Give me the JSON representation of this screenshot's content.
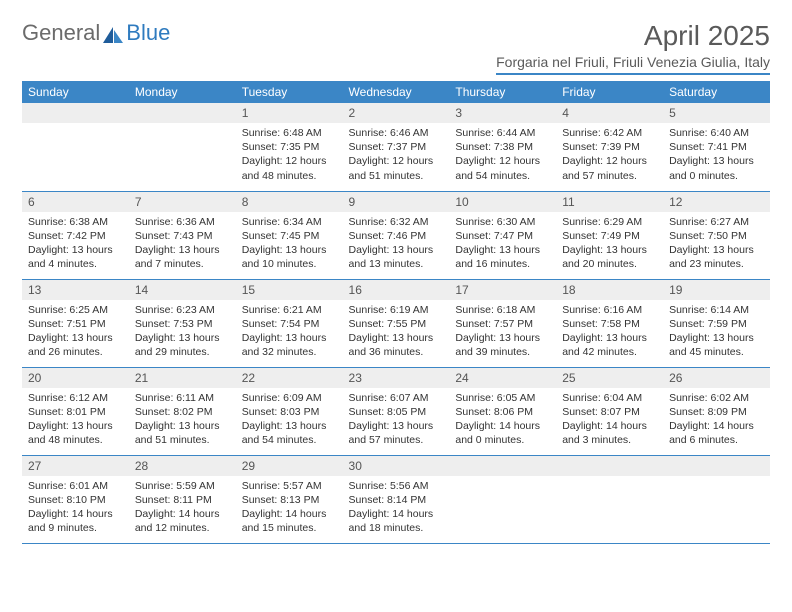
{
  "logo": {
    "text1": "General",
    "text2": "Blue",
    "accent": "#2f7bbf"
  },
  "title": "April 2025",
  "location": "Forgaria nel Friuli, Friuli Venezia Giulia, Italy",
  "colors": {
    "header_bg": "#3b86c6",
    "header_text": "#ffffff",
    "daynum_bg": "#eeeeee",
    "border": "#3b86c6",
    "text": "#333333",
    "page_bg": "#ffffff"
  },
  "weekdays": [
    "Sunday",
    "Monday",
    "Tuesday",
    "Wednesday",
    "Thursday",
    "Friday",
    "Saturday"
  ],
  "weeks": [
    [
      null,
      null,
      {
        "n": "1",
        "sr": "Sunrise: 6:48 AM",
        "ss": "Sunset: 7:35 PM",
        "dl": "Daylight: 12 hours and 48 minutes."
      },
      {
        "n": "2",
        "sr": "Sunrise: 6:46 AM",
        "ss": "Sunset: 7:37 PM",
        "dl": "Daylight: 12 hours and 51 minutes."
      },
      {
        "n": "3",
        "sr": "Sunrise: 6:44 AM",
        "ss": "Sunset: 7:38 PM",
        "dl": "Daylight: 12 hours and 54 minutes."
      },
      {
        "n": "4",
        "sr": "Sunrise: 6:42 AM",
        "ss": "Sunset: 7:39 PM",
        "dl": "Daylight: 12 hours and 57 minutes."
      },
      {
        "n": "5",
        "sr": "Sunrise: 6:40 AM",
        "ss": "Sunset: 7:41 PM",
        "dl": "Daylight: 13 hours and 0 minutes."
      }
    ],
    [
      {
        "n": "6",
        "sr": "Sunrise: 6:38 AM",
        "ss": "Sunset: 7:42 PM",
        "dl": "Daylight: 13 hours and 4 minutes."
      },
      {
        "n": "7",
        "sr": "Sunrise: 6:36 AM",
        "ss": "Sunset: 7:43 PM",
        "dl": "Daylight: 13 hours and 7 minutes."
      },
      {
        "n": "8",
        "sr": "Sunrise: 6:34 AM",
        "ss": "Sunset: 7:45 PM",
        "dl": "Daylight: 13 hours and 10 minutes."
      },
      {
        "n": "9",
        "sr": "Sunrise: 6:32 AM",
        "ss": "Sunset: 7:46 PM",
        "dl": "Daylight: 13 hours and 13 minutes."
      },
      {
        "n": "10",
        "sr": "Sunrise: 6:30 AM",
        "ss": "Sunset: 7:47 PM",
        "dl": "Daylight: 13 hours and 16 minutes."
      },
      {
        "n": "11",
        "sr": "Sunrise: 6:29 AM",
        "ss": "Sunset: 7:49 PM",
        "dl": "Daylight: 13 hours and 20 minutes."
      },
      {
        "n": "12",
        "sr": "Sunrise: 6:27 AM",
        "ss": "Sunset: 7:50 PM",
        "dl": "Daylight: 13 hours and 23 minutes."
      }
    ],
    [
      {
        "n": "13",
        "sr": "Sunrise: 6:25 AM",
        "ss": "Sunset: 7:51 PM",
        "dl": "Daylight: 13 hours and 26 minutes."
      },
      {
        "n": "14",
        "sr": "Sunrise: 6:23 AM",
        "ss": "Sunset: 7:53 PM",
        "dl": "Daylight: 13 hours and 29 minutes."
      },
      {
        "n": "15",
        "sr": "Sunrise: 6:21 AM",
        "ss": "Sunset: 7:54 PM",
        "dl": "Daylight: 13 hours and 32 minutes."
      },
      {
        "n": "16",
        "sr": "Sunrise: 6:19 AM",
        "ss": "Sunset: 7:55 PM",
        "dl": "Daylight: 13 hours and 36 minutes."
      },
      {
        "n": "17",
        "sr": "Sunrise: 6:18 AM",
        "ss": "Sunset: 7:57 PM",
        "dl": "Daylight: 13 hours and 39 minutes."
      },
      {
        "n": "18",
        "sr": "Sunrise: 6:16 AM",
        "ss": "Sunset: 7:58 PM",
        "dl": "Daylight: 13 hours and 42 minutes."
      },
      {
        "n": "19",
        "sr": "Sunrise: 6:14 AM",
        "ss": "Sunset: 7:59 PM",
        "dl": "Daylight: 13 hours and 45 minutes."
      }
    ],
    [
      {
        "n": "20",
        "sr": "Sunrise: 6:12 AM",
        "ss": "Sunset: 8:01 PM",
        "dl": "Daylight: 13 hours and 48 minutes."
      },
      {
        "n": "21",
        "sr": "Sunrise: 6:11 AM",
        "ss": "Sunset: 8:02 PM",
        "dl": "Daylight: 13 hours and 51 minutes."
      },
      {
        "n": "22",
        "sr": "Sunrise: 6:09 AM",
        "ss": "Sunset: 8:03 PM",
        "dl": "Daylight: 13 hours and 54 minutes."
      },
      {
        "n": "23",
        "sr": "Sunrise: 6:07 AM",
        "ss": "Sunset: 8:05 PM",
        "dl": "Daylight: 13 hours and 57 minutes."
      },
      {
        "n": "24",
        "sr": "Sunrise: 6:05 AM",
        "ss": "Sunset: 8:06 PM",
        "dl": "Daylight: 14 hours and 0 minutes."
      },
      {
        "n": "25",
        "sr": "Sunrise: 6:04 AM",
        "ss": "Sunset: 8:07 PM",
        "dl": "Daylight: 14 hours and 3 minutes."
      },
      {
        "n": "26",
        "sr": "Sunrise: 6:02 AM",
        "ss": "Sunset: 8:09 PM",
        "dl": "Daylight: 14 hours and 6 minutes."
      }
    ],
    [
      {
        "n": "27",
        "sr": "Sunrise: 6:01 AM",
        "ss": "Sunset: 8:10 PM",
        "dl": "Daylight: 14 hours and 9 minutes."
      },
      {
        "n": "28",
        "sr": "Sunrise: 5:59 AM",
        "ss": "Sunset: 8:11 PM",
        "dl": "Daylight: 14 hours and 12 minutes."
      },
      {
        "n": "29",
        "sr": "Sunrise: 5:57 AM",
        "ss": "Sunset: 8:13 PM",
        "dl": "Daylight: 14 hours and 15 minutes."
      },
      {
        "n": "30",
        "sr": "Sunrise: 5:56 AM",
        "ss": "Sunset: 8:14 PM",
        "dl": "Daylight: 14 hours and 18 minutes."
      },
      null,
      null,
      null
    ]
  ]
}
